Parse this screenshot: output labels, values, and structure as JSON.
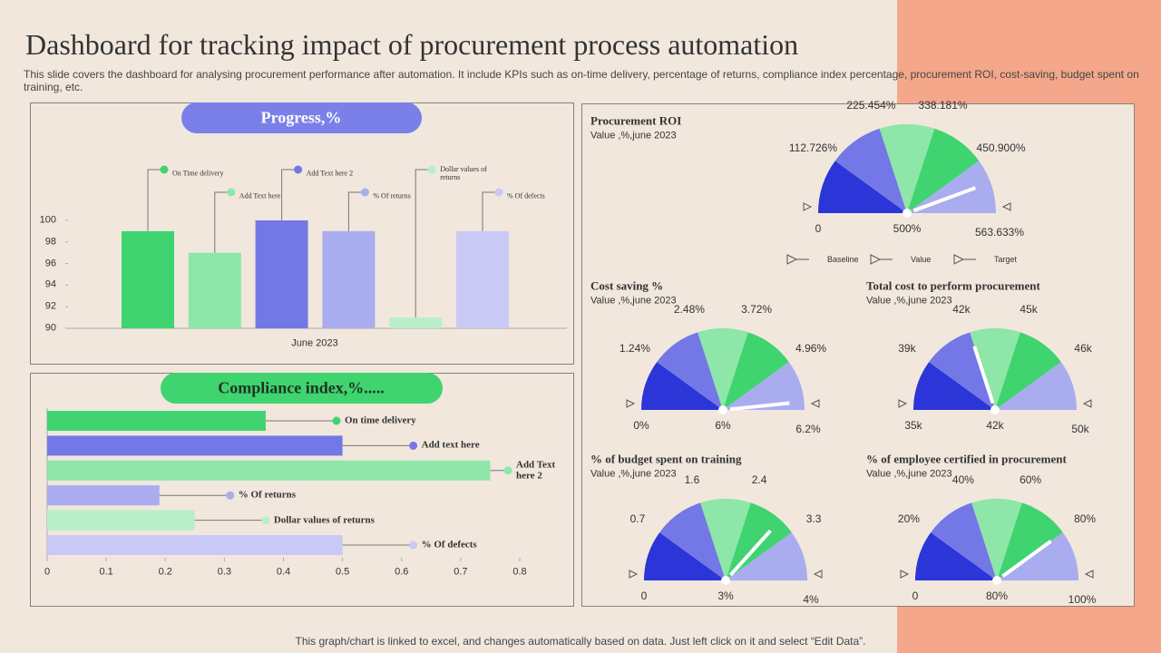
{
  "header": {
    "title": "Dashboard for tracking impact of procurement process automation",
    "subtitle": "This slide covers the dashboard for analysing procurement performance after automation. It include KPIs such as on-time delivery, percentage of returns, compliance index percentage, procurement ROI, cost-saving, budget spent on training, etc."
  },
  "footer": "This graph/chart is linked to excel,  and changes automatically based on data. Just left click on it and select “Edit Data”.",
  "chart_data": [
    {
      "type": "bar",
      "title": "Progress,%",
      "categories": [
        "June 2023"
      ],
      "series": [
        {
          "name": "On Time delivery",
          "color": "#3fd46f",
          "values": [
            99
          ]
        },
        {
          "name": "Add Text here",
          "color": "#8ee6a8",
          "values": [
            97
          ]
        },
        {
          "name": "Add Text here 2",
          "color": "#7378e6",
          "values": [
            100
          ]
        },
        {
          "name": "% Of returns",
          "color": "#a9acef",
          "values": [
            99
          ]
        },
        {
          "name": "Dollar values of returns",
          "color": "#b9efc8",
          "values": [
            91
          ]
        },
        {
          "name": "% Of defects",
          "color": "#c9c9f5",
          "values": [
            99
          ]
        }
      ],
      "ylim": [
        90,
        100
      ],
      "yticks": [
        90,
        92,
        94,
        96,
        98,
        100
      ]
    },
    {
      "type": "hbar",
      "title": "Compliance index,%.....",
      "categories": [
        "On time delivery",
        "Add text here",
        "Add Text here 2",
        "% Of returns",
        "Dollar values of returns",
        "% Of defects"
      ],
      "values": [
        0.37,
        0.5,
        0.75,
        0.19,
        0.25,
        0.5
      ],
      "colors": [
        "#3fd46f",
        "#7378e6",
        "#8ee6a8",
        "#a9acef",
        "#b9efc8",
        "#c9c9f5"
      ],
      "xlim": [
        0,
        0.8
      ],
      "xticks": [
        0,
        0.1,
        0.2,
        0.3,
        0.4,
        0.5,
        0.6,
        0.7,
        0.8
      ]
    },
    {
      "type": "gauge",
      "title": "Procurement ROI",
      "subtitle": "Value ,%,june 2023",
      "ticks": [
        0,
        {
          "value": 112.726,
          "label": "112.726%"
        },
        {
          "value": 225.454,
          "label": "225.454%"
        },
        {
          "value": 338.181,
          "label": "338.181%"
        },
        {
          "value": 450.9,
          "label": "450.900%"
        },
        {
          "value": 563.633,
          "label": "563.633%"
        }
      ],
      "value": 500,
      "value_label": "500%",
      "colors": [
        "#2b35d8",
        "#7378e6",
        "#8ee6a8",
        "#3fd46f",
        "#a9acef"
      ],
      "legend": [
        "Baseline",
        "Value",
        "Target"
      ]
    },
    {
      "type": "gauge",
      "title": "Cost saving %",
      "subtitle": "Value ,%,june 2023",
      "ticks": [
        {
          "value": 0,
          "label": "0%"
        },
        {
          "value": 1.24,
          "label": "1.24%"
        },
        {
          "value": 2.48,
          "label": "2.48%"
        },
        {
          "value": 3.72,
          "label": "3.72%"
        },
        {
          "value": 4.96,
          "label": "4.96%"
        },
        {
          "value": 6.2,
          "label": "6.2%"
        }
      ],
      "value": 6,
      "value_label": "6%",
      "colors": [
        "#2b35d8",
        "#7378e6",
        "#8ee6a8",
        "#3fd46f",
        "#a9acef"
      ]
    },
    {
      "type": "gauge",
      "title": "Total cost to perform procurement",
      "subtitle": "Value ,%,june 2023",
      "ticks": [
        {
          "value": 35000,
          "label": "35k"
        },
        {
          "value": 39000,
          "label": "39k"
        },
        {
          "value": 42000,
          "label": "42k"
        },
        {
          "value": 45000,
          "label": "45k"
        },
        {
          "value": 46000,
          "label": "46k"
        },
        {
          "value": 50000,
          "label": "50k"
        }
      ],
      "value": 42000,
      "value_label": "42k",
      "colors": [
        "#2b35d8",
        "#7378e6",
        "#8ee6a8",
        "#3fd46f",
        "#a9acef"
      ]
    },
    {
      "type": "gauge",
      "title": "% of budget spent on training",
      "subtitle": "Value ,%,june 2023",
      "ticks": [
        0,
        0.7,
        1.6,
        2.4,
        3.3,
        {
          "value": 4,
          "label": "4%"
        }
      ],
      "value": 3,
      "value_label": "3%",
      "colors": [
        "#2b35d8",
        "#7378e6",
        "#8ee6a8",
        "#3fd46f",
        "#a9acef"
      ]
    },
    {
      "type": "gauge",
      "title": "% of employee certified in procurement",
      "subtitle": "Value ,%,june 2023",
      "ticks": [
        0,
        {
          "value": 20,
          "label": "20%"
        },
        {
          "value": 40,
          "label": "40%"
        },
        {
          "value": 60,
          "label": "60%"
        },
        {
          "value": 80,
          "label": "80%"
        },
        {
          "value": 100,
          "label": "100%"
        }
      ],
      "value": 80,
      "value_label": "80%",
      "colors": [
        "#2b35d8",
        "#7378e6",
        "#8ee6a8",
        "#3fd46f",
        "#a9acef"
      ]
    }
  ]
}
